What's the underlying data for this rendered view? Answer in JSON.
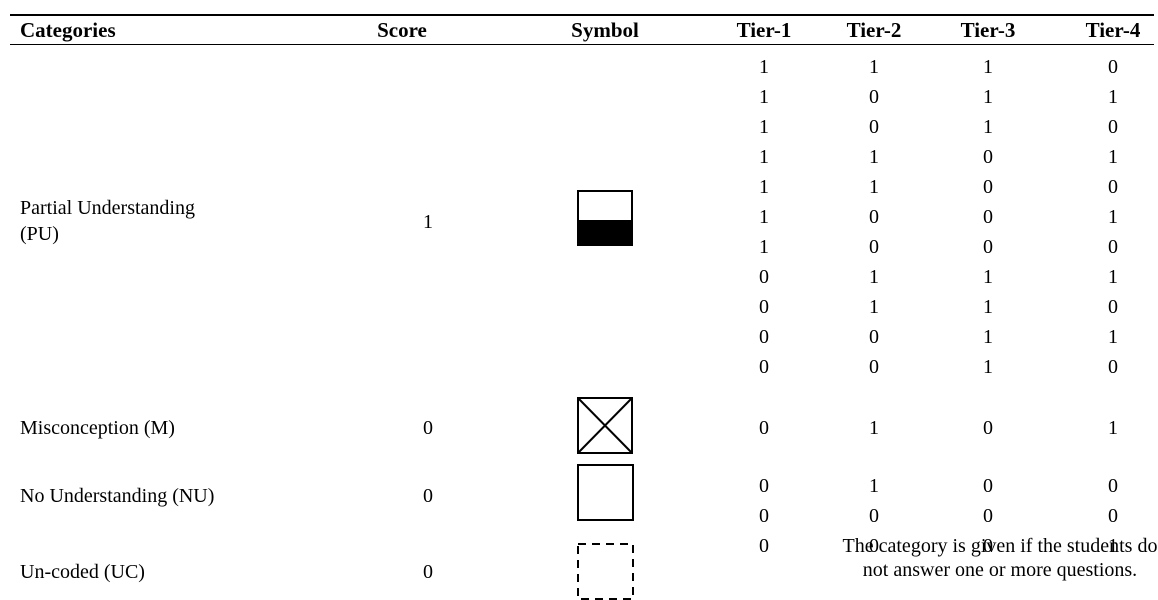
{
  "headers": [
    "Categories",
    "Score",
    "Symbol",
    "Tier-1",
    "Tier-2",
    "Tier-3",
    "Tier-4"
  ],
  "categories": [
    {
      "name_line1": "Partial Understanding",
      "name_line2": "(PU)",
      "score": "1",
      "symbol": "half-filled-square-icon",
      "rows": [
        [
          "1",
          "1",
          "1",
          "0"
        ],
        [
          "1",
          "0",
          "1",
          "1"
        ],
        [
          "1",
          "0",
          "1",
          "0"
        ],
        [
          "1",
          "1",
          "0",
          "1"
        ],
        [
          "1",
          "1",
          "0",
          "0"
        ],
        [
          "1",
          "0",
          "0",
          "1"
        ],
        [
          "1",
          "0",
          "0",
          "0"
        ],
        [
          "0",
          "1",
          "1",
          "1"
        ],
        [
          "0",
          "1",
          "1",
          "0"
        ],
        [
          "0",
          "0",
          "1",
          "1"
        ],
        [
          "0",
          "0",
          "1",
          "0"
        ]
      ]
    },
    {
      "name": "Misconception (M)",
      "score": "0",
      "symbol": "crossed-square-icon",
      "rows": [
        [
          "0",
          "1",
          "0",
          "1"
        ]
      ]
    },
    {
      "name": "No Understanding (NU)",
      "score": "0",
      "symbol": "empty-square-icon",
      "rows": [
        [
          "0",
          "1",
          "0",
          "0"
        ],
        [
          "0",
          "0",
          "0",
          "0"
        ],
        [
          "0",
          "0",
          "0",
          "1"
        ]
      ]
    },
    {
      "name": "Un-coded (UC)",
      "score": "0",
      "symbol": "dashed-square-icon",
      "note_line1": "The category is given if the students do",
      "note_line2": "not answer one or more questions."
    }
  ]
}
